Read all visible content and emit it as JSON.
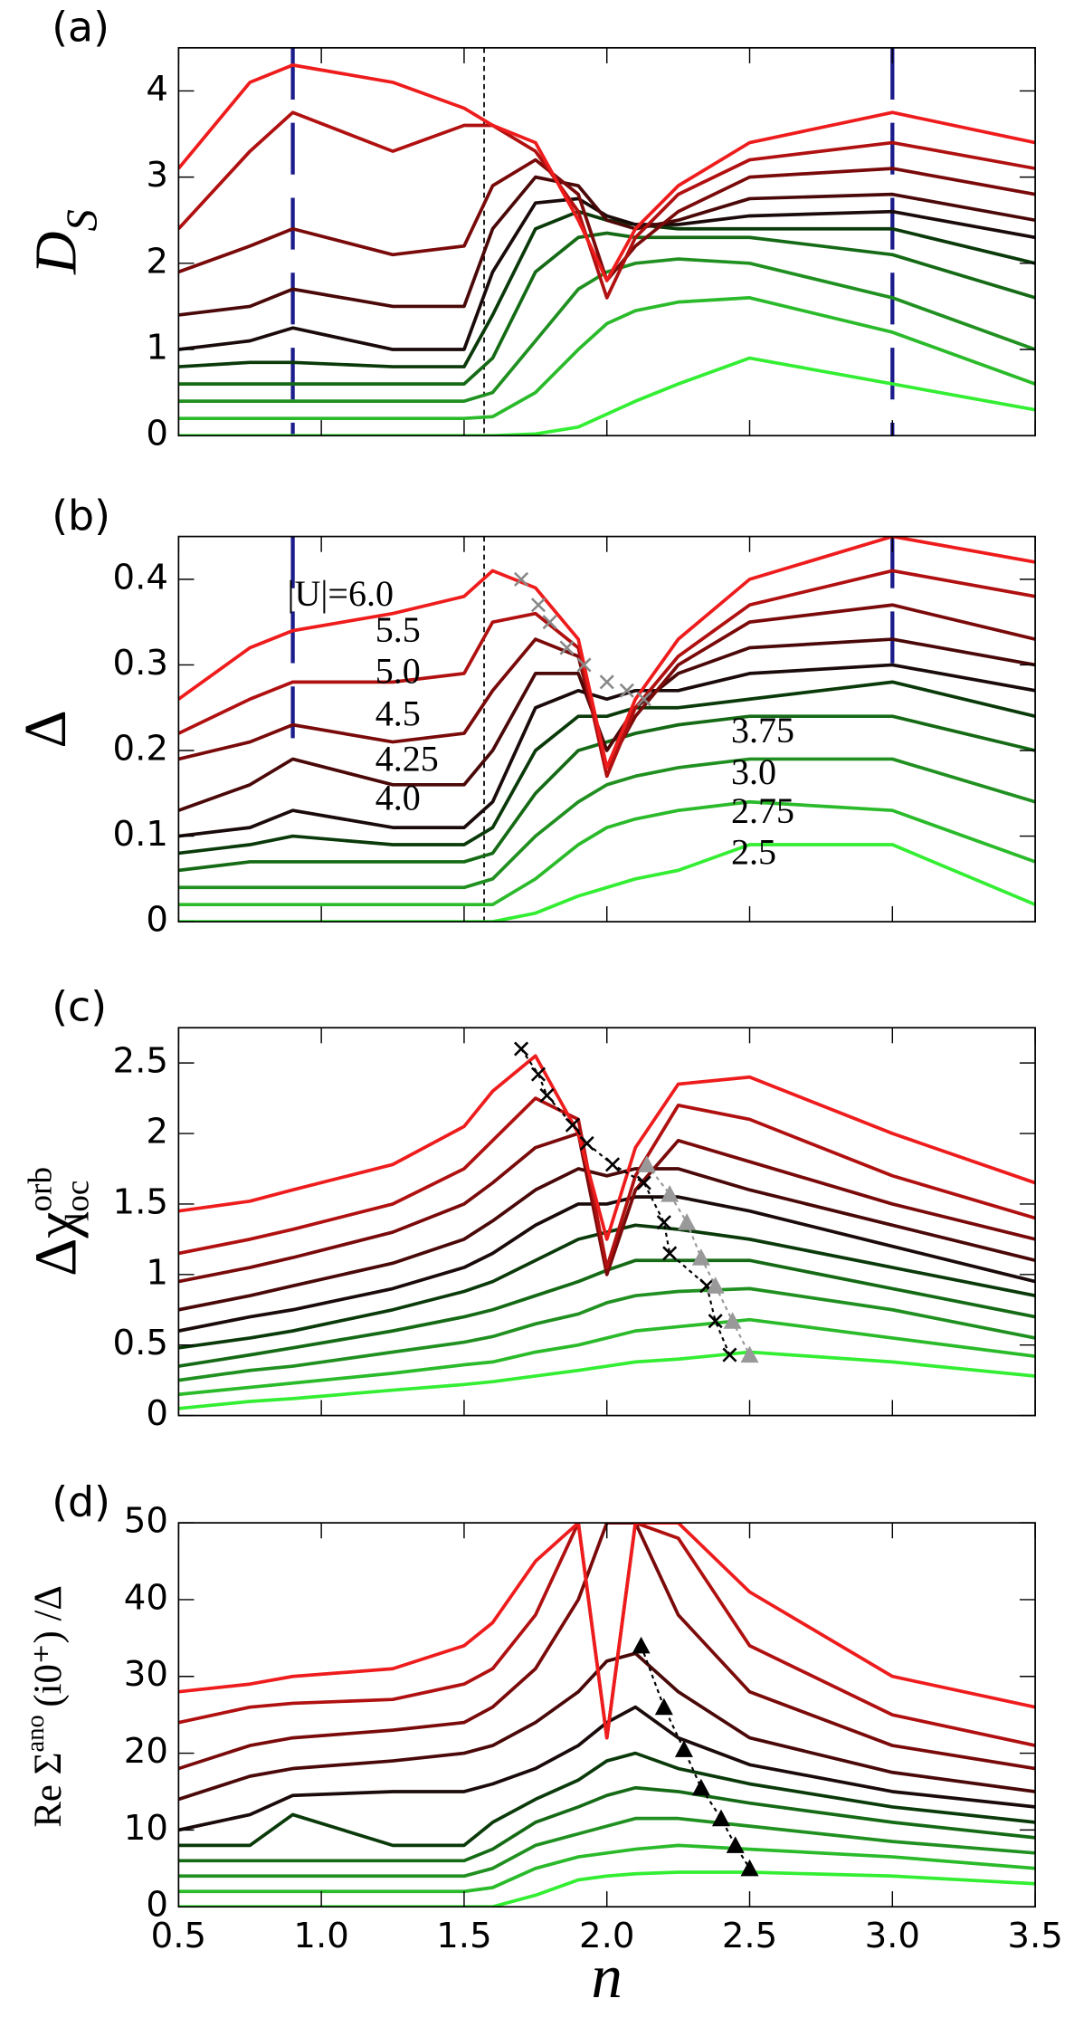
{
  "chart_data": [
    {
      "type": "line",
      "panel_label": "(a)",
      "ylabel": "D",
      "ylabel_sub": "S",
      "xlim": [
        0.5,
        3.5
      ],
      "xticks": [
        0.5,
        1,
        1.5,
        2,
        2.5,
        3,
        3.5
      ],
      "ylim": [
        0,
        4.5
      ],
      "yticks": [
        0,
        1,
        2,
        3,
        4
      ],
      "vlines": [
        {
          "x": 0.9,
          "color": "#1c1c8c"
        },
        {
          "x": 3.0,
          "color": "#1c1c8c"
        }
      ],
      "dotted_vline": 1.57,
      "x": [
        0.5,
        0.75,
        0.9,
        1.25,
        1.5,
        1.6,
        1.75,
        1.9,
        2.0,
        2.1,
        2.25,
        2.5,
        3.0,
        3.5
      ],
      "series": [
        {
          "color": "#33ee33",
          "values": [
            0,
            0,
            0,
            0,
            0,
            0,
            0.02,
            0.1,
            0.25,
            0.4,
            0.6,
            0.9,
            0.6,
            0.3
          ]
        },
        {
          "color": "#2aba2a",
          "values": [
            0.2,
            0.2,
            0.2,
            0.2,
            0.2,
            0.22,
            0.5,
            1.0,
            1.3,
            1.45,
            1.55,
            1.6,
            1.2,
            0.6
          ]
        },
        {
          "color": "#209020",
          "values": [
            0.4,
            0.4,
            0.4,
            0.4,
            0.4,
            0.5,
            1.1,
            1.7,
            1.9,
            2.0,
            2.05,
            2.0,
            1.6,
            1.0
          ]
        },
        {
          "color": "#156a15",
          "values": [
            0.6,
            0.6,
            0.6,
            0.6,
            0.6,
            0.9,
            1.9,
            2.3,
            2.35,
            2.3,
            2.3,
            2.3,
            2.1,
            1.6
          ]
        },
        {
          "color": "#0a3a0a",
          "values": [
            0.8,
            0.85,
            0.85,
            0.8,
            0.8,
            1.4,
            2.4,
            2.6,
            2.5,
            2.45,
            2.4,
            2.4,
            2.4,
            2.0
          ]
        },
        {
          "color": "#1a0a0a",
          "values": [
            1.0,
            1.1,
            1.25,
            1.0,
            1.0,
            1.9,
            2.7,
            2.75,
            2.55,
            2.45,
            2.45,
            2.55,
            2.6,
            2.3
          ]
        },
        {
          "color": "#4a0808",
          "values": [
            1.4,
            1.5,
            1.7,
            1.5,
            1.5,
            2.4,
            3.0,
            2.9,
            2.5,
            2.4,
            2.5,
            2.75,
            2.8,
            2.5
          ]
        },
        {
          "color": "#7a0a0a",
          "values": [
            1.9,
            2.2,
            2.4,
            2.1,
            2.2,
            2.9,
            3.2,
            2.8,
            1.8,
            2.2,
            2.6,
            3.0,
            3.1,
            2.8
          ]
        },
        {
          "color": "#b01010",
          "values": [
            2.4,
            3.3,
            3.75,
            3.3,
            3.6,
            3.6,
            3.3,
            2.6,
            1.6,
            2.3,
            2.8,
            3.2,
            3.4,
            3.1
          ]
        },
        {
          "color": "#ee1c1c",
          "values": [
            3.1,
            4.1,
            4.3,
            4.1,
            3.8,
            3.6,
            3.4,
            2.5,
            1.8,
            2.4,
            2.9,
            3.4,
            3.75,
            3.4
          ]
        }
      ]
    },
    {
      "type": "line",
      "panel_label": "(b)",
      "ylabel": "Δ",
      "xlim": [
        0.5,
        3.5
      ],
      "xticks": [
        0.5,
        1,
        1.5,
        2,
        2.5,
        3,
        3.5
      ],
      "ylim": [
        0,
        0.45
      ],
      "yticks": [
        0,
        0.1,
        0.2,
        0.3,
        0.4
      ],
      "vlines": [
        {
          "x": 0.9,
          "ymin": 0.19,
          "color": "#1c1c8c"
        },
        {
          "x": 3.0,
          "ymin": 0.28,
          "color": "#1c1c8c"
        }
      ],
      "dotted_vline": 1.57,
      "x": [
        0.5,
        0.75,
        0.9,
        1.25,
        1.5,
        1.6,
        1.75,
        1.9,
        2.0,
        2.1,
        2.25,
        2.5,
        3.0,
        3.5
      ],
      "series": [
        {
          "name": "2.5",
          "color": "#33ee33",
          "values": [
            0,
            0,
            0,
            0,
            0,
            0,
            0.01,
            0.03,
            0.04,
            0.05,
            0.06,
            0.09,
            0.09,
            0.02
          ]
        },
        {
          "name": "2.75",
          "color": "#2aba2a",
          "values": [
            0.02,
            0.02,
            0.02,
            0.02,
            0.02,
            0.02,
            0.05,
            0.09,
            0.11,
            0.12,
            0.13,
            0.14,
            0.13,
            0.07
          ]
        },
        {
          "name": "3.0",
          "color": "#209020",
          "values": [
            0.04,
            0.04,
            0.04,
            0.04,
            0.04,
            0.05,
            0.1,
            0.14,
            0.16,
            0.17,
            0.18,
            0.19,
            0.19,
            0.14
          ]
        },
        {
          "name": "3.75",
          "color": "#156a15",
          "values": [
            0.06,
            0.07,
            0.07,
            0.07,
            0.07,
            0.08,
            0.15,
            0.2,
            0.21,
            0.22,
            0.23,
            0.24,
            0.24,
            0.2
          ]
        },
        {
          "name": "4.0",
          "color": "#0a3a0a",
          "values": [
            0.08,
            0.09,
            0.1,
            0.09,
            0.09,
            0.11,
            0.2,
            0.24,
            0.24,
            0.25,
            0.25,
            0.26,
            0.28,
            0.24
          ]
        },
        {
          "name": "4.25",
          "color": "#1a0a0a",
          "values": [
            0.1,
            0.11,
            0.13,
            0.11,
            0.11,
            0.14,
            0.25,
            0.27,
            0.26,
            0.27,
            0.27,
            0.29,
            0.3,
            0.27
          ]
        },
        {
          "name": "4.5",
          "color": "#4a0808",
          "values": [
            0.13,
            0.16,
            0.19,
            0.16,
            0.16,
            0.2,
            0.29,
            0.29,
            0.2,
            0.25,
            0.29,
            0.32,
            0.33,
            0.3
          ]
        },
        {
          "name": "5.0",
          "color": "#7a0a0a",
          "values": [
            0.19,
            0.21,
            0.23,
            0.21,
            0.22,
            0.27,
            0.33,
            0.31,
            0.18,
            0.24,
            0.3,
            0.35,
            0.37,
            0.33
          ]
        },
        {
          "name": "5.5",
          "color": "#b01010",
          "values": [
            0.22,
            0.26,
            0.28,
            0.28,
            0.29,
            0.35,
            0.36,
            0.32,
            0.17,
            0.25,
            0.31,
            0.37,
            0.41,
            0.38
          ]
        },
        {
          "name": "|U|=6.0",
          "color": "#ee1c1c",
          "values": [
            0.26,
            0.32,
            0.34,
            0.36,
            0.38,
            0.41,
            0.39,
            0.33,
            0.18,
            0.26,
            0.33,
            0.4,
            0.45,
            0.42
          ]
        }
      ],
      "crosses": {
        "color": "#888888",
        "x": [
          1.7,
          1.76,
          1.8,
          1.86,
          1.92,
          2.0,
          2.07,
          2.13
        ],
        "y": [
          0.4,
          0.37,
          0.35,
          0.32,
          0.3,
          0.28,
          0.27,
          0.26
        ]
      }
    },
    {
      "type": "line",
      "panel_label": "(c)",
      "ylabel": "Δχ",
      "ylabel_sup": "orb",
      "ylabel_sub": "loc",
      "xlim": [
        0.5,
        3.5
      ],
      "xticks": [
        0.5,
        1,
        1.5,
        2,
        2.5,
        3,
        3.5
      ],
      "ylim": [
        0,
        2.75
      ],
      "yticks": [
        0,
        0.5,
        1,
        1.5,
        2,
        2.5
      ],
      "x": [
        0.5,
        0.75,
        0.9,
        1.25,
        1.5,
        1.6,
        1.75,
        1.9,
        2.0,
        2.1,
        2.25,
        2.5,
        3.0,
        3.5
      ],
      "series": [
        {
          "color": "#33ee33",
          "values": [
            0.05,
            0.1,
            0.12,
            0.18,
            0.22,
            0.24,
            0.28,
            0.32,
            0.35,
            0.38,
            0.4,
            0.45,
            0.38,
            0.28
          ]
        },
        {
          "color": "#2aba2a",
          "values": [
            0.15,
            0.2,
            0.23,
            0.3,
            0.36,
            0.38,
            0.45,
            0.5,
            0.55,
            0.6,
            0.63,
            0.68,
            0.55,
            0.42
          ]
        },
        {
          "color": "#209020",
          "values": [
            0.25,
            0.32,
            0.35,
            0.45,
            0.52,
            0.56,
            0.65,
            0.72,
            0.8,
            0.85,
            0.88,
            0.9,
            0.75,
            0.55
          ]
        },
        {
          "color": "#156a15",
          "values": [
            0.35,
            0.43,
            0.48,
            0.6,
            0.7,
            0.75,
            0.85,
            0.95,
            1.03,
            1.1,
            1.1,
            1.1,
            0.9,
            0.7
          ]
        },
        {
          "color": "#0a3a0a",
          "values": [
            0.48,
            0.55,
            0.6,
            0.75,
            0.88,
            0.95,
            1.1,
            1.25,
            1.3,
            1.35,
            1.32,
            1.25,
            1.05,
            0.85
          ]
        },
        {
          "color": "#1a0a0a",
          "values": [
            0.6,
            0.7,
            0.75,
            0.9,
            1.05,
            1.15,
            1.35,
            1.5,
            1.5,
            1.55,
            1.55,
            1.45,
            1.2,
            0.95
          ]
        },
        {
          "color": "#4a0808",
          "values": [
            0.75,
            0.85,
            0.92,
            1.08,
            1.25,
            1.38,
            1.6,
            1.75,
            1.7,
            1.75,
            1.75,
            1.6,
            1.35,
            1.1
          ]
        },
        {
          "color": "#7a0a0a",
          "values": [
            0.95,
            1.05,
            1.12,
            1.3,
            1.5,
            1.65,
            1.9,
            2.0,
            1.0,
            1.6,
            1.95,
            1.8,
            1.5,
            1.25
          ]
        },
        {
          "color": "#b01010",
          "values": [
            1.15,
            1.25,
            1.32,
            1.5,
            1.75,
            1.95,
            2.25,
            2.1,
            1.05,
            1.7,
            2.2,
            2.1,
            1.7,
            1.4
          ]
        },
        {
          "color": "#ee1c1c",
          "values": [
            1.45,
            1.52,
            1.6,
            1.78,
            2.05,
            2.3,
            2.55,
            2.0,
            1.25,
            1.9,
            2.35,
            2.4,
            2.0,
            1.65
          ]
        }
      ],
      "crosses": {
        "color": "#000000",
        "x": [
          1.7,
          1.76,
          1.79,
          1.88,
          1.93,
          2.02,
          2.13,
          2.2,
          2.22,
          2.35,
          2.38,
          2.43
        ],
        "y": [
          2.6,
          2.42,
          2.27,
          2.06,
          1.93,
          1.78,
          1.65,
          1.37,
          1.15,
          0.92,
          0.67,
          0.43
        ]
      },
      "triangles": {
        "color": "#999999",
        "x": [
          2.14,
          2.22,
          2.28,
          2.33,
          2.38,
          2.44,
          2.5
        ],
        "y": [
          1.78,
          1.57,
          1.37,
          1.12,
          0.92,
          0.67,
          0.43
        ]
      }
    },
    {
      "type": "line",
      "panel_label": "(d)",
      "ylabel": "Re Σ",
      "ylabel_sup": "ano",
      "ylabel_rest": "(i0⁺) /Δ",
      "xlabel": "n",
      "xlim": [
        0.5,
        3.5
      ],
      "xticks": [
        {
          "value": 0.5,
          "label": "0.5"
        },
        {
          "value": 1,
          "label": "1.0"
        },
        {
          "value": 1.5,
          "label": "1.5"
        },
        {
          "value": 2,
          "label": "2.0"
        },
        {
          "value": 2.5,
          "label": "2.5"
        },
        {
          "value": 3,
          "label": "3.0"
        },
        {
          "value": 3.5,
          "label": "3.5"
        }
      ],
      "ylim": [
        0,
        50
      ],
      "yticks": [
        0,
        10,
        20,
        30,
        40,
        50
      ],
      "x": [
        0.5,
        0.75,
        0.9,
        1.25,
        1.5,
        1.6,
        1.75,
        1.9,
        2.0,
        2.1,
        2.25,
        2.5,
        3.0,
        3.5
      ],
      "series": [
        {
          "color": "#33ee33",
          "values": [
            0,
            0,
            0,
            0,
            0,
            0,
            1.5,
            3.5,
            4,
            4.3,
            4.5,
            4.5,
            4,
            3
          ]
        },
        {
          "color": "#2aba2a",
          "values": [
            2,
            2,
            2,
            2,
            2,
            2.5,
            5,
            6.5,
            7,
            7.5,
            8,
            7.5,
            6.5,
            5
          ]
        },
        {
          "color": "#209020",
          "values": [
            4,
            4,
            4,
            4,
            4,
            5,
            8,
            9.5,
            10.5,
            11.5,
            11.5,
            10.5,
            8.5,
            7
          ]
        },
        {
          "color": "#156a15",
          "values": [
            6,
            6,
            6,
            6,
            6,
            7.5,
            11,
            13,
            14.5,
            15.5,
            15,
            13.5,
            11,
            9
          ]
        },
        {
          "color": "#0a3a0a",
          "values": [
            8,
            8,
            12,
            8,
            8,
            11,
            14,
            16.5,
            19,
            20,
            18,
            16,
            13,
            11
          ]
        },
        {
          "color": "#1a0a0a",
          "values": [
            10,
            12,
            14.5,
            15,
            15,
            16,
            18,
            21,
            24,
            26,
            22,
            18.5,
            15,
            13
          ]
        },
        {
          "color": "#4a0808",
          "values": [
            14,
            17,
            18,
            19,
            20,
            21,
            24,
            28,
            32,
            33,
            28,
            22,
            17.5,
            15
          ]
        },
        {
          "color": "#7a0a0a",
          "values": [
            18,
            21,
            22,
            23,
            24,
            26,
            31,
            40,
            50,
            50,
            38,
            28,
            21,
            18
          ]
        },
        {
          "color": "#b01010",
          "values": [
            24,
            26,
            26.5,
            27,
            29,
            31,
            38,
            50,
            22,
            50,
            48,
            34,
            25,
            21
          ]
        },
        {
          "color": "#ee1c1c",
          "values": [
            28,
            29,
            30,
            31,
            34,
            37,
            45,
            50,
            22,
            50,
            50,
            41,
            30,
            26
          ]
        }
      ],
      "triangles": {
        "color": "#000000",
        "x": [
          2.12,
          2.2,
          2.27,
          2.33,
          2.4,
          2.45,
          2.5
        ],
        "y": [
          34,
          26,
          20.5,
          15.5,
          11.5,
          8,
          5
        ]
      }
    }
  ]
}
